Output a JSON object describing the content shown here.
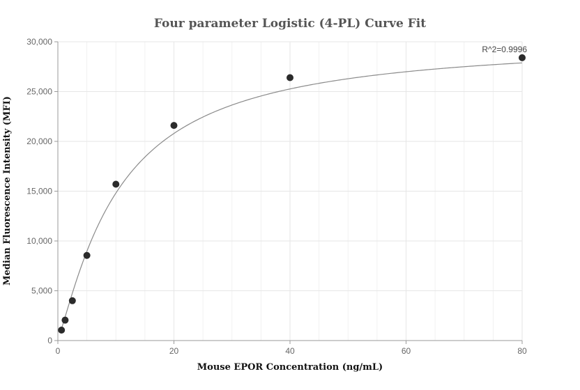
{
  "chart_data": {
    "type": "scatter",
    "title": "Four parameter Logistic (4-PL) Curve Fit",
    "xlabel": "Mouse EPOR Concentration (ng/mL)",
    "ylabel": "Median Fluorescence Intensity (MFI)",
    "xlim": [
      0,
      80
    ],
    "ylim": [
      0,
      30000
    ],
    "x_ticks": [
      0,
      20,
      40,
      60,
      80
    ],
    "x_tick_labels": [
      "0",
      "20",
      "40",
      "60",
      "80"
    ],
    "y_ticks": [
      0,
      5000,
      10000,
      15000,
      20000,
      25000,
      30000
    ],
    "y_tick_labels": [
      "0",
      "5,000",
      "10,000",
      "15,000",
      "20,000",
      "25,000",
      "30,000"
    ],
    "grid": true,
    "points": [
      {
        "x": 0.625,
        "y": 1050
      },
      {
        "x": 1.25,
        "y": 2050
      },
      {
        "x": 2.5,
        "y": 4000
      },
      {
        "x": 5,
        "y": 8550
      },
      {
        "x": 10,
        "y": 15700
      },
      {
        "x": 20,
        "y": 21600
      },
      {
        "x": 40,
        "y": 26400
      },
      {
        "x": 80,
        "y": 28400
      }
    ],
    "fit_curve": {
      "bottom": 200,
      "top": 30300,
      "ec50": 10.5,
      "hill": 1.2
    },
    "annotation": "R^2=0.9996",
    "colors": {
      "points": "#2b2b2b",
      "curve": "#8a8a8a",
      "grid": "#e6e6e6",
      "axis": "#999999"
    }
  }
}
